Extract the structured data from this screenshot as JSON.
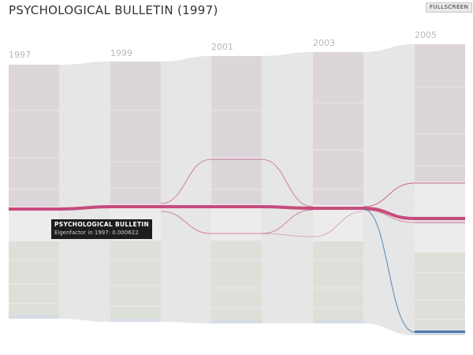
{
  "header": {
    "title": "PSYCHOLOGICAL BULLETIN (1997)",
    "fullscreen_label": "FULLSCREEN"
  },
  "timeline": {
    "years": [
      "1997",
      "1999",
      "2001",
      "2003",
      "2005"
    ]
  },
  "tooltip": {
    "journal": "PSYCHOLOGICAL BULLETIN",
    "detail": "Eigenfactor in 1997: 0.000622"
  },
  "colors": {
    "upper_module": "#dcd6da",
    "lower_module": "#dde0d9",
    "highlight": "#c0306a",
    "highlight_2005": "#4a7aa8",
    "flow": "#e4e4e4"
  }
}
